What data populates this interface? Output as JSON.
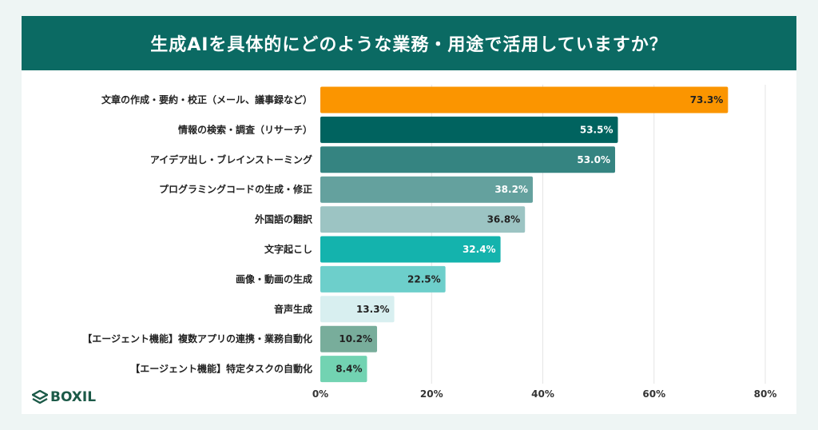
{
  "chart_data": {
    "type": "bar",
    "orientation": "horizontal",
    "title": "生成AIを具体的にどのような業務・用途で活用していますか？",
    "categories": [
      "文章の作成・要約・校正（メール、議事録など）",
      "情報の検索・調査（リサーチ）",
      "アイデア出し・ブレインストーミング",
      "プログラミングコードの生成・修正",
      "外国語の翻訳",
      "文字起こし",
      "画像・動画の生成",
      "音声生成",
      "【エージェント機能】複数アプリの連携・業務自動化",
      "【エージェント機能】特定タスクの自動化"
    ],
    "values": [
      73.3,
      53.5,
      53.0,
      38.2,
      36.8,
      32.4,
      22.5,
      13.3,
      10.2,
      8.4
    ],
    "value_labels": [
      "73.3%",
      "53.5%",
      "53.0%",
      "38.2%",
      "36.8%",
      "32.4%",
      "22.5%",
      "13.3%",
      "10.2%",
      "8.4%"
    ],
    "bar_colors": [
      "#fb9500",
      "#00635f",
      "#358481",
      "#64a19e",
      "#9cc4c3",
      "#14b3ad",
      "#6dcfcb",
      "#d8eff0",
      "#78ad9b",
      "#72d3b2"
    ],
    "label_colors": [
      "#222222",
      "#ffffff",
      "#ffffff",
      "#ffffff",
      "#222222",
      "#ffffff",
      "#222222",
      "#222222",
      "#222222",
      "#222222"
    ],
    "xlim": [
      0,
      100
    ],
    "xticks": [
      "0%",
      "20%",
      "40%",
      "60%",
      "80%"
    ],
    "xtick_values": [
      0,
      20,
      40,
      60,
      80
    ],
    "grid": true,
    "xlabel": "",
    "ylabel": ""
  },
  "logo": {
    "text": "BOXIL"
  },
  "colors": {
    "header": "#0b6a63",
    "background": "#eef5f4"
  }
}
